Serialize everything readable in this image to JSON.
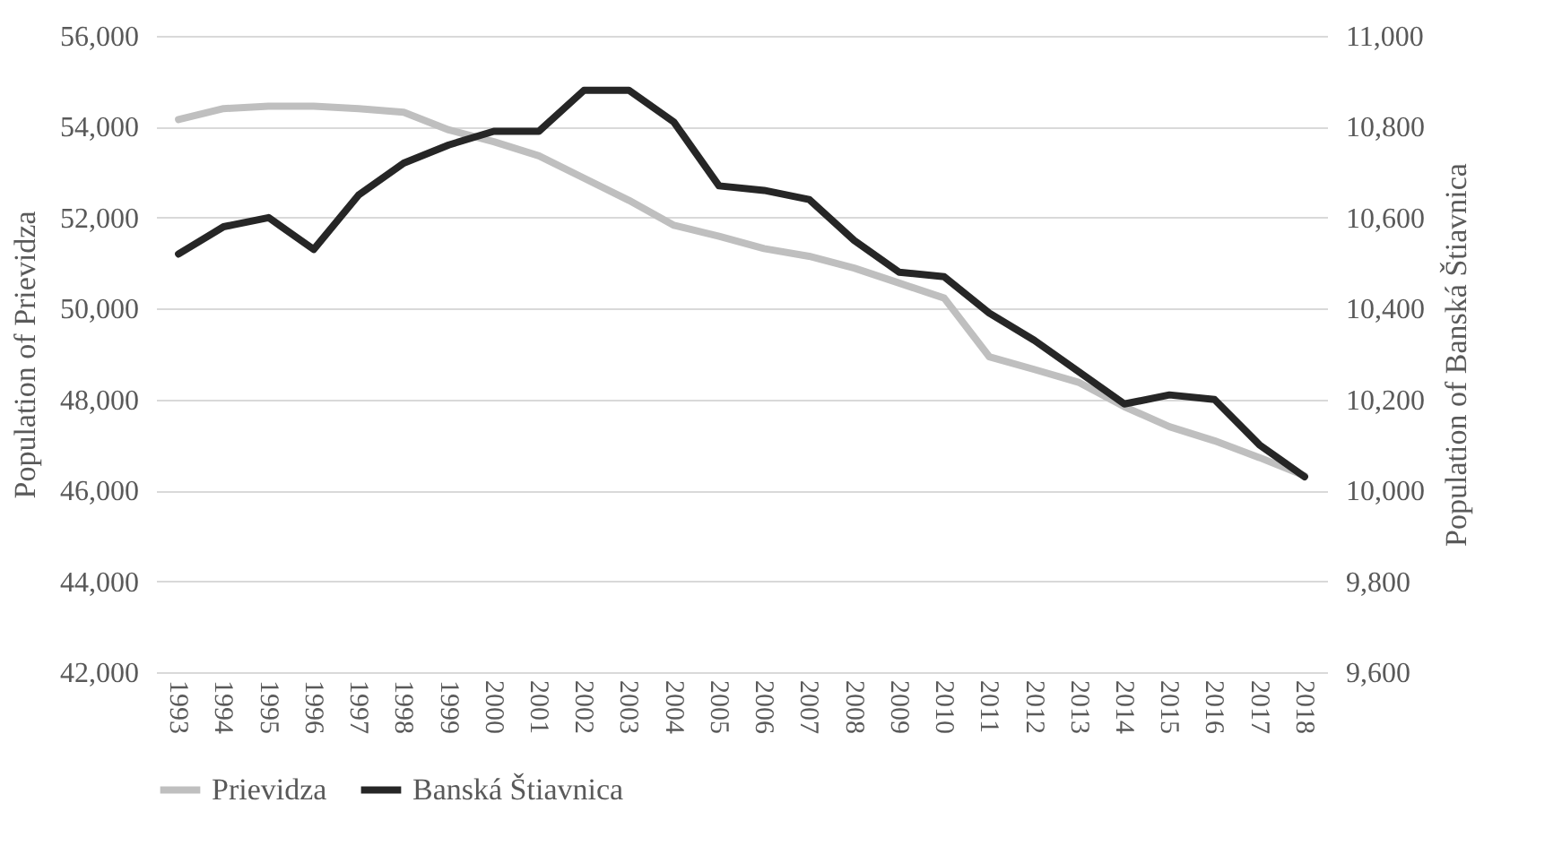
{
  "chart_data": {
    "type": "line",
    "categories": [
      "1993",
      "1994",
      "1995",
      "1996",
      "1997",
      "1998",
      "1999",
      "2000",
      "2001",
      "2002",
      "2003",
      "2004",
      "2005",
      "2006",
      "2007",
      "2008",
      "2009",
      "2010",
      "2011",
      "2012",
      "2013",
      "2014",
      "2015",
      "2016",
      "2017",
      "2018"
    ],
    "series": [
      {
        "name": "Prievidza",
        "color": "#bfbfbf",
        "values": [
          54160,
          54400,
          54450,
          54450,
          54400,
          54320,
          53930,
          53670,
          53360,
          52870,
          52380,
          51830,
          51590,
          51320,
          51150,
          50890,
          50560,
          50230,
          48940,
          48660,
          48370,
          47840,
          47400,
          47090,
          46720,
          46320
        ]
      },
      {
        "name": "Banská Štiavnica",
        "color": "#262626",
        "axis": "y2",
        "values": [
          10520,
          10580,
          10600,
          10530,
          10650,
          10720,
          10760,
          10790,
          10790,
          10880,
          10880,
          10810,
          10670,
          10660,
          10640,
          10550,
          10480,
          10470,
          10390,
          10330,
          10260,
          10190,
          10210,
          10200,
          10100,
          10030
        ]
      }
    ],
    "ylabel": "Population of Prievidza",
    "y2label": "Population of Banská Štiavnica",
    "ylim": [
      42000,
      56000
    ],
    "yticks": [
      {
        "value": 42000,
        "label": "42,000"
      },
      {
        "value": 44000,
        "label": "44,000"
      },
      {
        "value": 46000,
        "label": "46,000"
      },
      {
        "value": 48000,
        "label": "48,000"
      },
      {
        "value": 50000,
        "label": "50,000"
      },
      {
        "value": 52000,
        "label": "52,000"
      },
      {
        "value": 54000,
        "label": "54,000"
      },
      {
        "value": 56000,
        "label": "56,000"
      }
    ],
    "y2lim": [
      9600,
      11000
    ],
    "y2ticks": [
      {
        "value": 9600,
        "label": "9,600"
      },
      {
        "value": 9800,
        "label": "9,800"
      },
      {
        "value": 10000,
        "label": "10,000"
      },
      {
        "value": 10200,
        "label": "10,200"
      },
      {
        "value": 10400,
        "label": "10,400"
      },
      {
        "value": 10600,
        "label": "10,600"
      },
      {
        "value": 10800,
        "label": "10,800"
      },
      {
        "value": 11000,
        "label": "11,000"
      }
    ],
    "grid": "y",
    "legend": "bottom",
    "marker": "none",
    "line_style": "solid"
  }
}
